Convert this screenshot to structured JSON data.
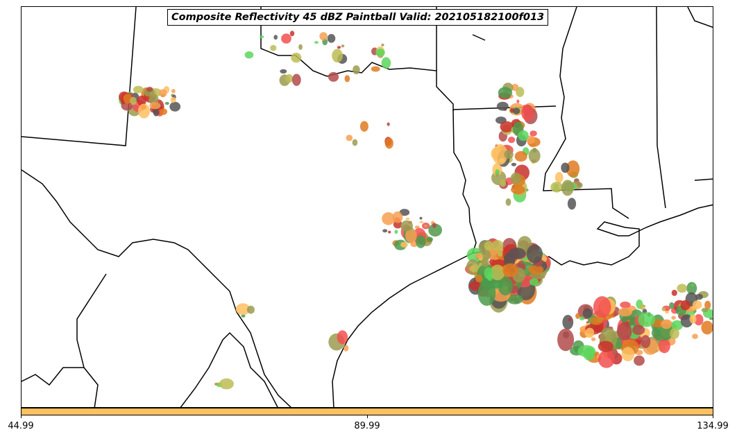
{
  "title": "Composite Reflectivity 45 dBZ Paintball Valid: 202105182100f013",
  "colorbar": {
    "color": "#ffc060",
    "tick_labels": [
      "44.99",
      "89.99",
      "134.99"
    ]
  },
  "map": {
    "region": "Texas and Gulf Coast",
    "member_colors": [
      "#f25050",
      "#f7a050",
      "#5cd65c",
      "#555555",
      "#9b9b50",
      "#b34a4a",
      "#bcbc55",
      "#e07a20",
      "#4c9a4c",
      "#c9302c",
      "#ffc060"
    ]
  }
}
